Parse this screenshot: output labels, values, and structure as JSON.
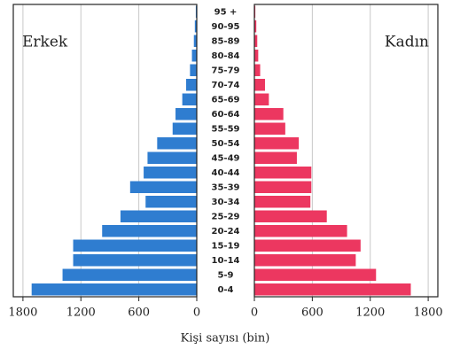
{
  "chart_data": {
    "type": "pyramid",
    "categories": [
      "0-4",
      "5-9",
      "10-14",
      "15-19",
      "20-24",
      "25-29",
      "30-34",
      "35-39",
      "40-44",
      "45-49",
      "50-54",
      "55-59",
      "60-64",
      "65-69",
      "70-74",
      "75-79",
      "80-84",
      "85-89",
      "90-95",
      "95 +"
    ],
    "series": [
      {
        "name": "Erkek",
        "color": "#2f7dd0",
        "values": [
          1710,
          1390,
          1280,
          1280,
          980,
          790,
          530,
          690,
          550,
          510,
          410,
          250,
          220,
          150,
          110,
          70,
          50,
          30,
          20,
          10
        ]
      },
      {
        "name": "Kadın",
        "color": "#ec3760",
        "values": [
          1620,
          1260,
          1050,
          1100,
          960,
          750,
          580,
          590,
          590,
          440,
          460,
          320,
          300,
          150,
          110,
          60,
          40,
          30,
          20,
          10
        ]
      }
    ],
    "xlim": [
      0,
      1900
    ],
    "xticks": [
      0,
      600,
      1200,
      1800
    ],
    "grid": true,
    "x_label": "Kişi sayısı (bin)"
  }
}
